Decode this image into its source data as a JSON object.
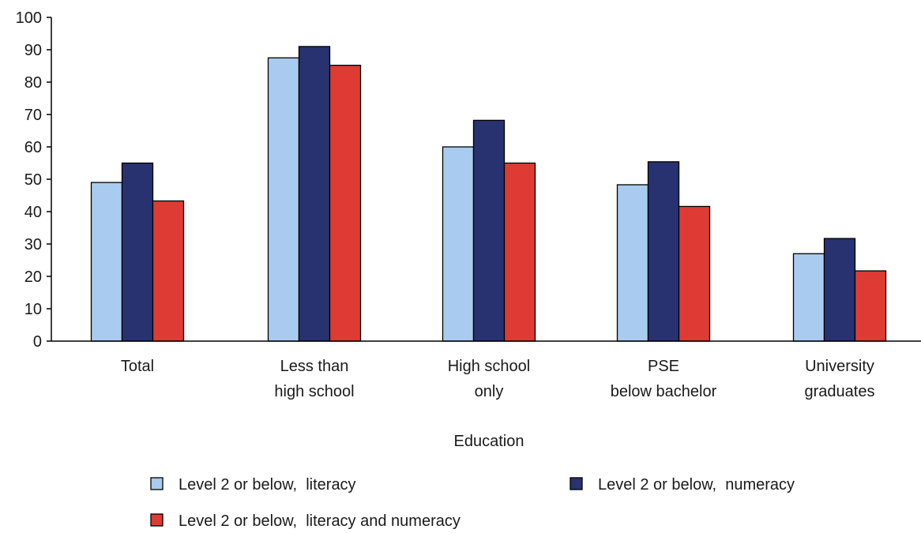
{
  "chart_data": {
    "type": "bar",
    "title": "",
    "xlabel": "Education",
    "ylabel": "",
    "ylim": [
      0,
      100
    ],
    "yticks": [
      0,
      10,
      20,
      30,
      40,
      50,
      60,
      70,
      80,
      90,
      100
    ],
    "grid": false,
    "legend_position": "bottom",
    "categories": [
      [
        "Total"
      ],
      [
        "Less than",
        "high school"
      ],
      [
        "High school",
        "only"
      ],
      [
        "PSE",
        "below bachelor"
      ],
      [
        "University",
        "graduates"
      ]
    ],
    "series": [
      {
        "name": "Level 2 or below,  literacy",
        "color": "#a9cbef",
        "values": [
          49,
          87.5,
          60,
          48.3,
          27
        ]
      },
      {
        "name": "Level 2 or below,  numeracy",
        "color": "#283270",
        "values": [
          55,
          91,
          68.2,
          55.4,
          31.7
        ]
      },
      {
        "name": "Level 2 or below,  literacy and numeracy",
        "color": "#dd3b33",
        "values": [
          43.3,
          85.2,
          55,
          41.6,
          21.7
        ]
      }
    ]
  }
}
